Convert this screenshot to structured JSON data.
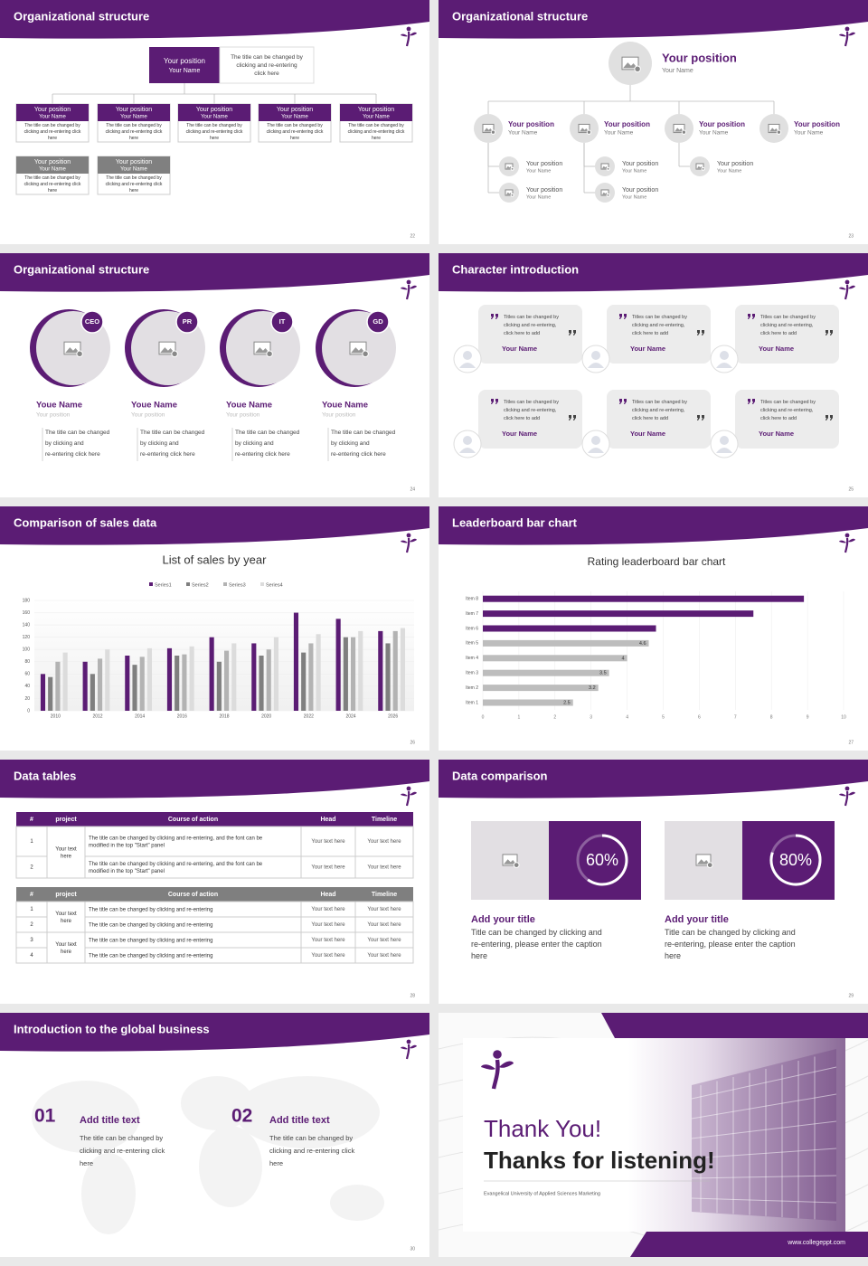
{
  "slides": [
    {
      "title": "Organizational structure",
      "page": "22",
      "top": {
        "position": "Your position",
        "name": "Your Name"
      },
      "note": "The title can be changed by clicking and re-entering click here",
      "rows": [
        [
          {
            "position": "Your position",
            "name": "Your Name",
            "text": "The title can be changed by clicking and re-entering click here"
          },
          {
            "position": "Your position",
            "name": "Your Name",
            "text": "The title can be changed by clicking and re-entering click here"
          },
          {
            "position": "Your position",
            "name": "Your Name",
            "text": "The title can be changed by clicking and re-entering click here"
          },
          {
            "position": "Your position",
            "name": "Your Name",
            "text": "The title can be changed by clicking and re-entering click here"
          },
          {
            "position": "Your position",
            "name": "Your Name",
            "text": "The title can be changed by clicking and re-entering click here"
          }
        ],
        [
          {
            "position": "Your position",
            "name": "Your Name",
            "text": "The title can be changed by clicking and re-entering click here"
          },
          {
            "position": "Your position",
            "name": "Your Name",
            "text": "The title can be changed by clicking and re-entering click here"
          }
        ]
      ]
    },
    {
      "title": "Organizational structure",
      "page": "23",
      "top": {
        "position": "Your position",
        "name": "Your Name"
      },
      "nodes": [
        {
          "position": "Your position",
          "name": "Your Name",
          "children": [
            {
              "position": "Your position",
              "name": "Your Name"
            },
            {
              "position": "Your position",
              "name": "Your Name"
            }
          ]
        },
        {
          "position": "Your position",
          "name": "Your Name",
          "children": [
            {
              "position": "Your position",
              "name": "Your Name"
            },
            {
              "position": "Your position",
              "name": "Your Name"
            }
          ]
        },
        {
          "position": "Your position",
          "name": "Your Name",
          "children": [
            {
              "position": "Your position",
              "name": "Your Name"
            }
          ]
        },
        {
          "position": "Your position",
          "name": "Your Name",
          "children": []
        }
      ]
    },
    {
      "title": "Organizational structure",
      "page": "24",
      "members": [
        {
          "badge": "CEO",
          "name": "Youe Name",
          "position": "Your position",
          "text": "The title can be changed by clicking and re-entering click here"
        },
        {
          "badge": "PR",
          "name": "Youe Name",
          "position": "Your position",
          "text": "The title can be changed by clicking and re-entering click here"
        },
        {
          "badge": "IT",
          "name": "Youe Name",
          "position": "Your position",
          "text": "The title can be changed by clicking and re-entering click here"
        },
        {
          "badge": "GD",
          "name": "Youe Name",
          "position": "Your position",
          "text": "The title can be changed by clicking and re-entering click here"
        }
      ]
    },
    {
      "title": "Character introduction",
      "page": "25",
      "cards": [
        {
          "text": "Titles can be changed by clicking and re-entering, click here to add",
          "name": "Your Name"
        },
        {
          "text": "Titles can be changed by clicking and re-entering, click here to add",
          "name": "Your Name"
        },
        {
          "text": "Titles can be changed by clicking and re-entering, click here to add",
          "name": "Your Name"
        },
        {
          "text": "Titles can be changed by clicking and re-entering, click here to add",
          "name": "Your Name"
        },
        {
          "text": "Titles can be changed by clicking and re-entering, click here to add",
          "name": "Your Name"
        },
        {
          "text": "Titles can be changed by clicking and re-entering, click here to add",
          "name": "Your Name"
        }
      ]
    },
    {
      "title": "Comparison of sales data",
      "page": "26",
      "chart": {
        "type": "bar",
        "title": "List of sales by year",
        "categories": [
          "2010",
          "2012",
          "2014",
          "2016",
          "2018",
          "2020",
          "2022",
          "2024",
          "2026"
        ],
        "series": [
          {
            "name": "Series1",
            "color": "#5b1c74",
            "values": [
              60,
              80,
              90,
              102,
              120,
              110,
              160,
              150,
              130
            ]
          },
          {
            "name": "Series2",
            "color": "#7f7f7f",
            "values": [
              55,
              60,
              75,
              90,
              80,
              90,
              95,
              120,
              110
            ]
          },
          {
            "name": "Series3",
            "color": "#b3b3b3",
            "values": [
              80,
              85,
              88,
              92,
              98,
              100,
              110,
              120,
              130
            ]
          },
          {
            "name": "Series4",
            "color": "#dcdcdc",
            "values": [
              95,
              100,
              102,
              105,
              110,
              120,
              125,
              130,
              135
            ]
          }
        ],
        "ylim": [
          0,
          180
        ],
        "yticks": [
          0,
          20,
          40,
          60,
          80,
          100,
          120,
          140,
          160,
          180
        ],
        "grid": true
      }
    },
    {
      "title": "Leaderboard bar chart",
      "page": "27",
      "chart": {
        "type": "barh",
        "title": "Rating leaderboard bar chart",
        "categories": [
          "Item 1",
          "Item 2",
          "Item 3",
          "Item 4",
          "Item 5",
          "Item 6",
          "Item 7",
          "Item 8"
        ],
        "values": [
          2.5,
          3.2,
          3.5,
          4,
          4.6,
          4.8,
          7.5,
          8.9
        ],
        "colors": [
          "#bdbdbd",
          "#bdbdbd",
          "#bdbdbd",
          "#bdbdbd",
          "#bdbdbd",
          "#5b1c74",
          "#5b1c74",
          "#5b1c74"
        ],
        "show_labels": [
          true,
          true,
          true,
          true,
          true,
          false,
          false,
          false
        ],
        "xlim": [
          0,
          10
        ],
        "xticks": [
          0,
          1,
          2,
          3,
          4,
          5,
          6,
          7,
          8,
          9,
          10
        ],
        "grid": true
      }
    },
    {
      "title": "Data tables",
      "page": "28",
      "tables": [
        {
          "header": [
            "#",
            "project",
            "Course of action",
            "Head",
            "Timeline"
          ],
          "groups": [
            {
              "project": "Your text here",
              "rows": [
                [
                  "1",
                  "The title can be changed by clicking and re-entering, and the font can be modified in the top \"Start\" panel",
                  "Your text here",
                  "Your text here"
                ],
                [
                  "2",
                  "The title can be changed by clicking and re-entering, and the font can be modified in the top \"Start\" panel",
                  "Your text here",
                  "Your text here"
                ]
              ]
            }
          ]
        },
        {
          "header": [
            "#",
            "project",
            "Course of action",
            "Head",
            "Timeline"
          ],
          "groups": [
            {
              "project": "Your text here",
              "rows": [
                [
                  "1",
                  "The title can be changed by clicking and re-entering",
                  "Your text here",
                  "Your text here"
                ],
                [
                  "2",
                  "The title can be changed by clicking and re-entering",
                  "Your text here",
                  "Your text here"
                ]
              ]
            },
            {
              "project": "Your text here",
              "rows": [
                [
                  "3",
                  "The title can be changed by clicking and re-entering",
                  "Your text here",
                  "Your text here"
                ],
                [
                  "4",
                  "The title can be changed by clicking and re-entering",
                  "Your text here",
                  "Your text here"
                ]
              ]
            }
          ]
        }
      ]
    },
    {
      "title": "Data comparison",
      "page": "29",
      "panels": [
        {
          "percent": {
            "value": 60,
            "label": "60%"
          },
          "title": "Add your title",
          "text": "Title can be changed by clicking and re-entering, please enter the caption here"
        },
        {
          "percent": {
            "value": 80,
            "label": "80%"
          },
          "title": "Add your title",
          "text": "Title can be changed by clicking and re-entering, please enter the caption here"
        }
      ]
    },
    {
      "title": "Introduction to the global business",
      "page": "30",
      "items": [
        {
          "number": "01",
          "title": "Add title text",
          "text": "The title can be changed by clicking and re-entering click here"
        },
        {
          "number": "02",
          "title": "Add title text",
          "text": "The title can be changed by clicking and re-entering click here"
        }
      ]
    },
    {
      "title": "Thank You!",
      "subtitle": "Thanks for listening!",
      "caption": "Evangelical University of Applied Sciences Marketing",
      "url": "www.collegeppt.com"
    }
  ]
}
